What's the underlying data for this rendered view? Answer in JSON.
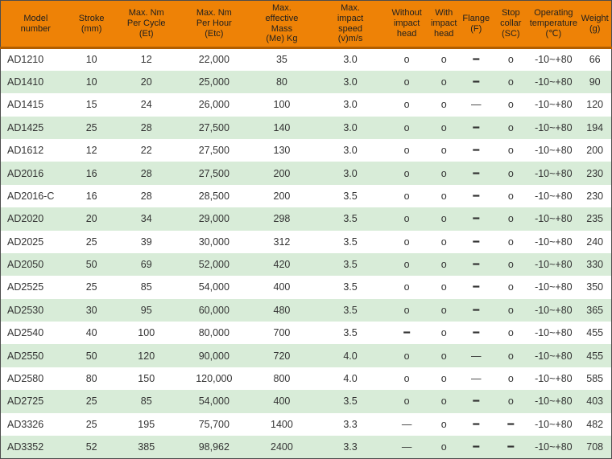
{
  "colors": {
    "header_bg": "#ee8206",
    "header_underline": "#b25e00",
    "row_alt_bg": "#d8ecd8",
    "row_bg": "#ffffff",
    "table_border": "#4d4d4d",
    "text": "#333333"
  },
  "table": {
    "columns": [
      {
        "key": "model",
        "label": "Model\nnumber"
      },
      {
        "key": "stroke",
        "label": "Stroke\n(mm)"
      },
      {
        "key": "max_nm_per_cycle",
        "label": "Max. Nm\nPer Cycle\n(Et)"
      },
      {
        "key": "max_nm_per_hour",
        "label": "Max. Nm\nPer Hour\n(Etc)"
      },
      {
        "key": "max_effective_mass",
        "label": "Max.\neffective\nMass\n(Me) Kg"
      },
      {
        "key": "max_impact_speed",
        "label": "Max.\nimpact\nspeed\n(v)m/s"
      },
      {
        "key": "without_impact_head",
        "label": "Without\nimpact\nhead"
      },
      {
        "key": "with_impact_head",
        "label": "With\nimpact\nhead"
      },
      {
        "key": "flange",
        "label": "Flange\n(F)"
      },
      {
        "key": "stop_collar",
        "label": "Stop\ncollar\n(SC)"
      },
      {
        "key": "operating_temperature",
        "label": "Operating\ntemperature\n(℃)"
      },
      {
        "key": "weight",
        "label": "Weight\n(g)"
      }
    ],
    "rows": [
      [
        "AD1210",
        "10",
        "12",
        "22,000",
        "35",
        "3.0",
        "o",
        "o",
        "━",
        "o",
        "-10~+80",
        "66"
      ],
      [
        "AD1410",
        "10",
        "20",
        "25,000",
        "80",
        "3.0",
        "o",
        "o",
        "━",
        "o",
        "-10~+80",
        "90"
      ],
      [
        "AD1415",
        "15",
        "24",
        "26,000",
        "100",
        "3.0",
        "o",
        "o",
        "—",
        "o",
        "-10~+80",
        "120"
      ],
      [
        "AD1425",
        "25",
        "28",
        "27,500",
        "140",
        "3.0",
        "o",
        "o",
        "━",
        "o",
        "-10~+80",
        "194"
      ],
      [
        "AD1612",
        "12",
        "22",
        "27,500",
        "130",
        "3.0",
        "o",
        "o",
        "━",
        "o",
        "-10~+80",
        "200"
      ],
      [
        "AD2016",
        "16",
        "28",
        "27,500",
        "200",
        "3.0",
        "o",
        "o",
        "━",
        "o",
        "-10~+80",
        "230"
      ],
      [
        "AD2016-C",
        "16",
        "28",
        "28,500",
        "200",
        "3.5",
        "o",
        "o",
        "━",
        "o",
        "-10~+80",
        "230"
      ],
      [
        "AD2020",
        "20",
        "34",
        "29,000",
        "298",
        "3.5",
        "o",
        "o",
        "━",
        "o",
        "-10~+80",
        "235"
      ],
      [
        "AD2025",
        "25",
        "39",
        "30,000",
        "312",
        "3.5",
        "o",
        "o",
        "━",
        "o",
        "-10~+80",
        "240"
      ],
      [
        "AD2050",
        "50",
        "69",
        "52,000",
        "420",
        "3.5",
        "o",
        "o",
        "━",
        "o",
        "-10~+80",
        "330"
      ],
      [
        "AD2525",
        "25",
        "85",
        "54,000",
        "400",
        "3.5",
        "o",
        "o",
        "━",
        "o",
        "-10~+80",
        "350"
      ],
      [
        "AD2530",
        "30",
        "95",
        "60,000",
        "480",
        "3.5",
        "o",
        "o",
        "━",
        "o",
        "-10~+80",
        "365"
      ],
      [
        "AD2540",
        "40",
        "100",
        "80,000",
        "700",
        "3.5",
        "━",
        "o",
        "━",
        "o",
        "-10~+80",
        "455"
      ],
      [
        "AD2550",
        "50",
        "120",
        "90,000",
        "720",
        "4.0",
        "o",
        "o",
        "—",
        "o",
        "-10~+80",
        "455"
      ],
      [
        "AD2580",
        "80",
        "150",
        "120,000",
        "800",
        "4.0",
        "o",
        "o",
        "—",
        "o",
        "-10~+80",
        "585"
      ],
      [
        "AD2725",
        "25",
        "85",
        "54,000",
        "400",
        "3.5",
        "o",
        "o",
        "━",
        "o",
        "-10~+80",
        "403"
      ],
      [
        "AD3326",
        "25",
        "195",
        "75,700",
        "1400",
        "3.3",
        "—",
        "o",
        "━",
        "━",
        "-10~+80",
        "482"
      ],
      [
        "AD3352",
        "52",
        "385",
        "98,962",
        "2400",
        "3.3",
        "—",
        "o",
        "━",
        "━",
        "-10~+80",
        "708"
      ]
    ]
  }
}
